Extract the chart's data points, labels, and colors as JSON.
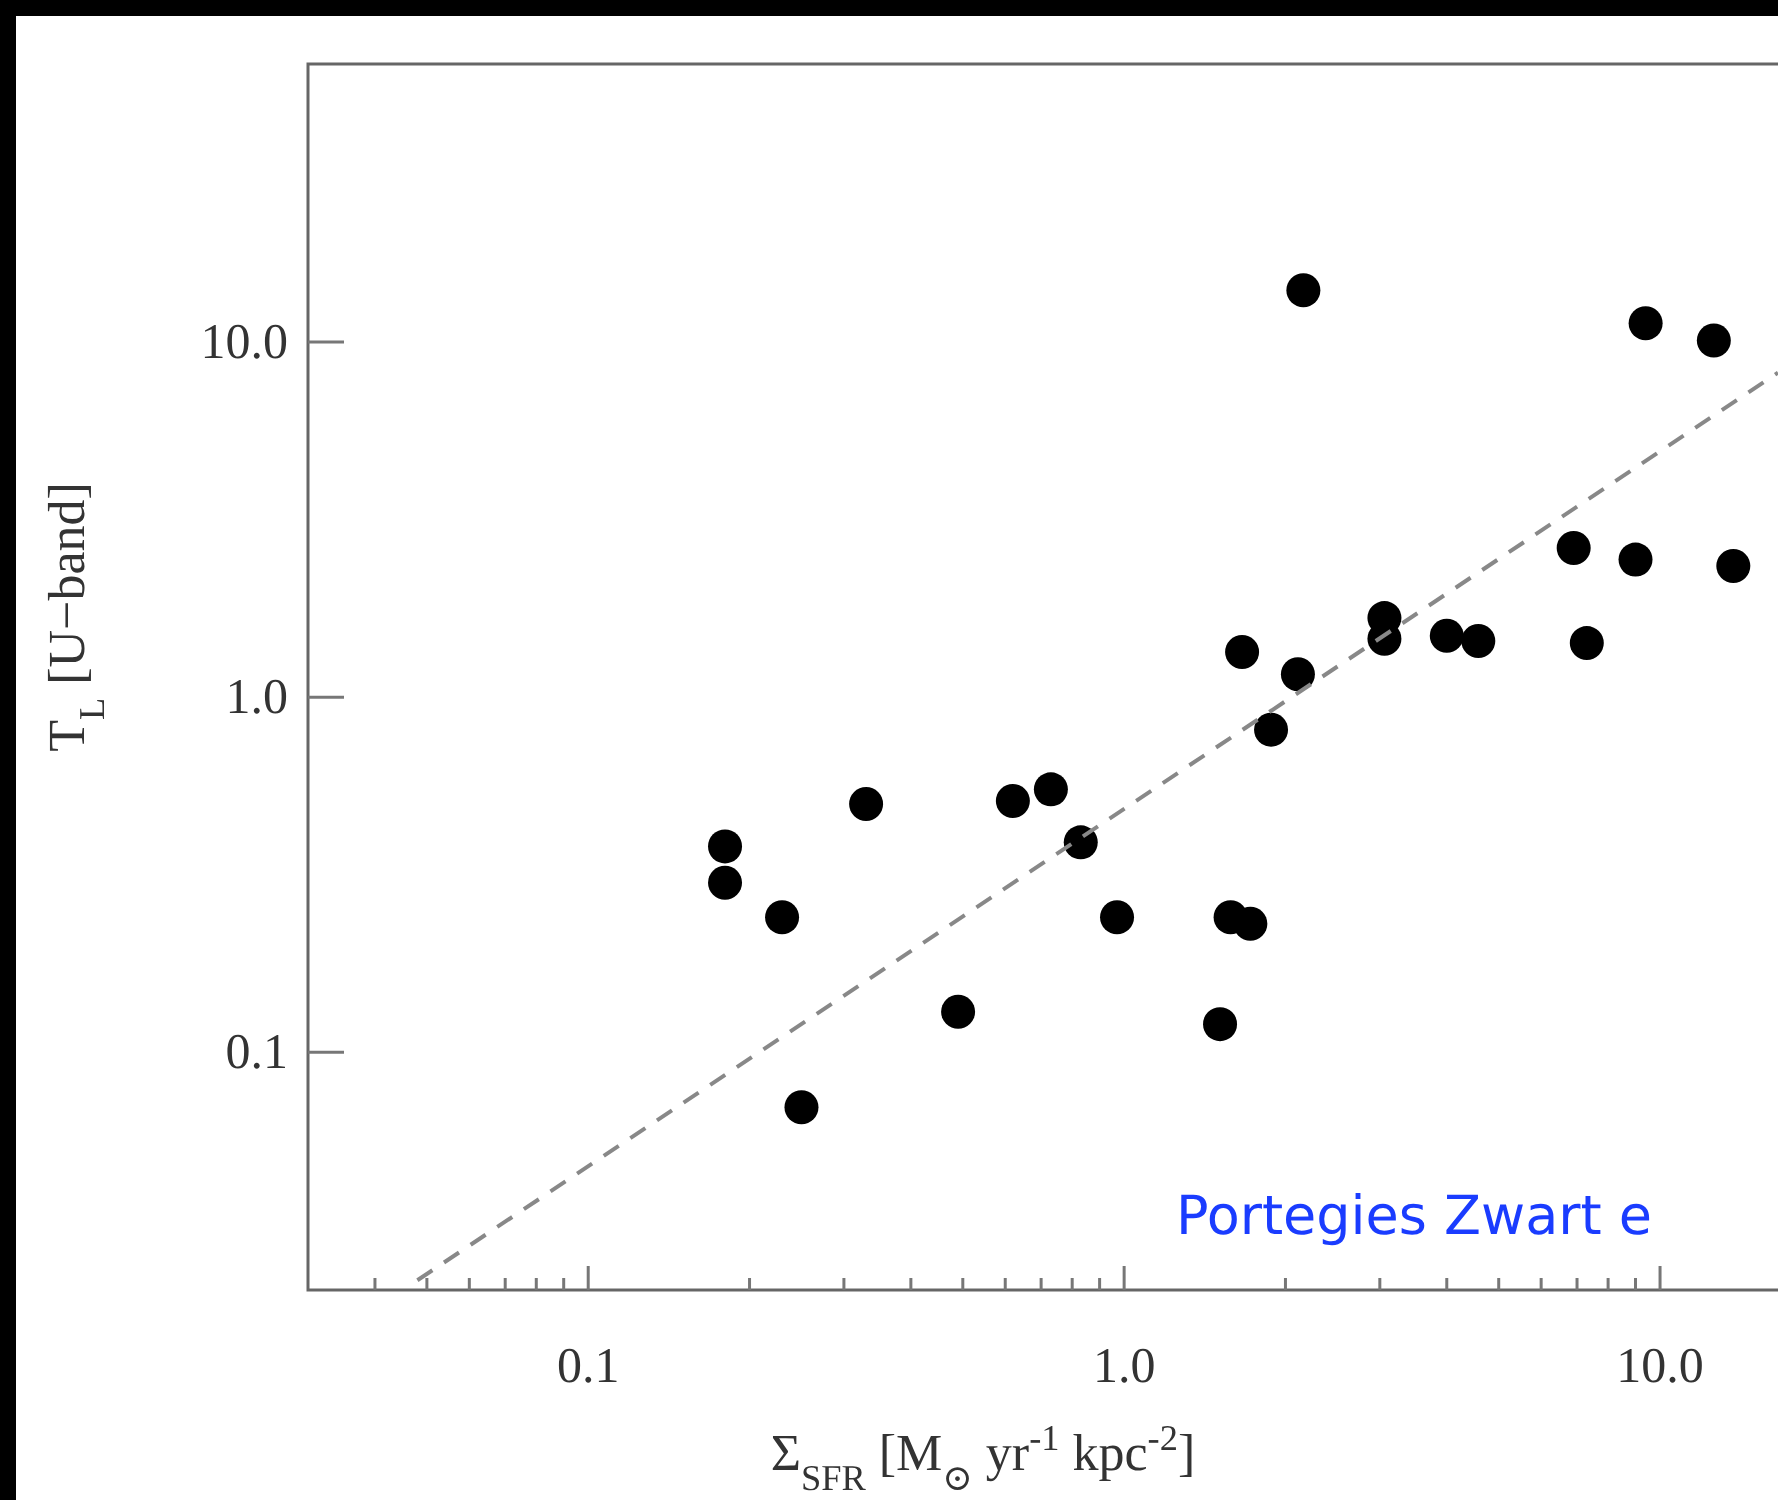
{
  "chart_data": {
    "type": "scatter",
    "xlabel": "Σ$_{SFR}$ [M$_{⊙}$ yr$^{-1}$ kpc$^{-2}$]",
    "ylabel": "T$_{L}$ [U−band]",
    "log": "xy",
    "xlim": [
      0.03,
      16.6
    ],
    "ylim": [
      0.0214,
      60.7
    ],
    "xticks": [
      {
        "value": 0.04,
        "label": null
      },
      {
        "value": 0.05,
        "label": null
      },
      {
        "value": 0.06,
        "label": null
      },
      {
        "value": 0.07,
        "label": null
      },
      {
        "value": 0.08,
        "label": null
      },
      {
        "value": 0.09,
        "label": null
      },
      0.1,
      {
        "value": 0.2,
        "label": null
      },
      {
        "value": 0.3,
        "label": null
      },
      {
        "value": 0.4,
        "label": null
      },
      {
        "value": 0.5,
        "label": null
      },
      {
        "value": 0.6,
        "label": null
      },
      {
        "value": 0.7,
        "label": null
      },
      {
        "value": 0.8,
        "label": null
      },
      {
        "value": 0.9,
        "label": null
      },
      {
        "value": 1,
        "label": "1.0"
      },
      {
        "value": 2,
        "label": null
      },
      {
        "value": 3,
        "label": null
      },
      {
        "value": 4,
        "label": null
      },
      {
        "value": 5,
        "label": null
      },
      {
        "value": 6,
        "label": null
      },
      {
        "value": 7,
        "label": null
      },
      {
        "value": 8,
        "label": null
      },
      {
        "value": 9,
        "label": null
      },
      {
        "value": 10,
        "label": "10.0"
      }
    ],
    "yticks": [
      0.1,
      {
        "value": 1,
        "label": "1.0"
      },
      {
        "value": 10,
        "label": "10.0"
      }
    ],
    "series": [
      {
        "color": "#000000",
        "marker": "circle",
        "x": [
          0.18,
          0.18,
          0.23,
          0.25,
          0.33,
          0.49,
          0.62,
          0.73,
          0.83,
          0.97,
          1.51,
          1.58,
          1.72,
          1.66,
          1.88,
          2.11,
          2.16,
          3.06,
          3.06,
          4.0,
          4.58,
          6.9,
          7.3,
          9.0,
          9.4,
          12.6,
          13.7
        ],
        "values": [
          0.38,
          0.3,
          0.24,
          0.07,
          0.5,
          0.13,
          0.51,
          0.55,
          0.39,
          0.24,
          0.12,
          0.24,
          0.23,
          1.34,
          0.81,
          1.16,
          14.0,
          1.67,
          1.46,
          1.49,
          1.44,
          2.63,
          1.42,
          2.44,
          11.3,
          10.1,
          2.34
        ]
      },
      {
        "type": "line",
        "color": "#888888",
        "line_style": "dashed",
        "x": [
          0.048,
          16.6
        ],
        "values": [
          0.0228,
          8.2
        ]
      }
    ],
    "annotations": [
      "Portegies Zwart e"
    ]
  }
}
